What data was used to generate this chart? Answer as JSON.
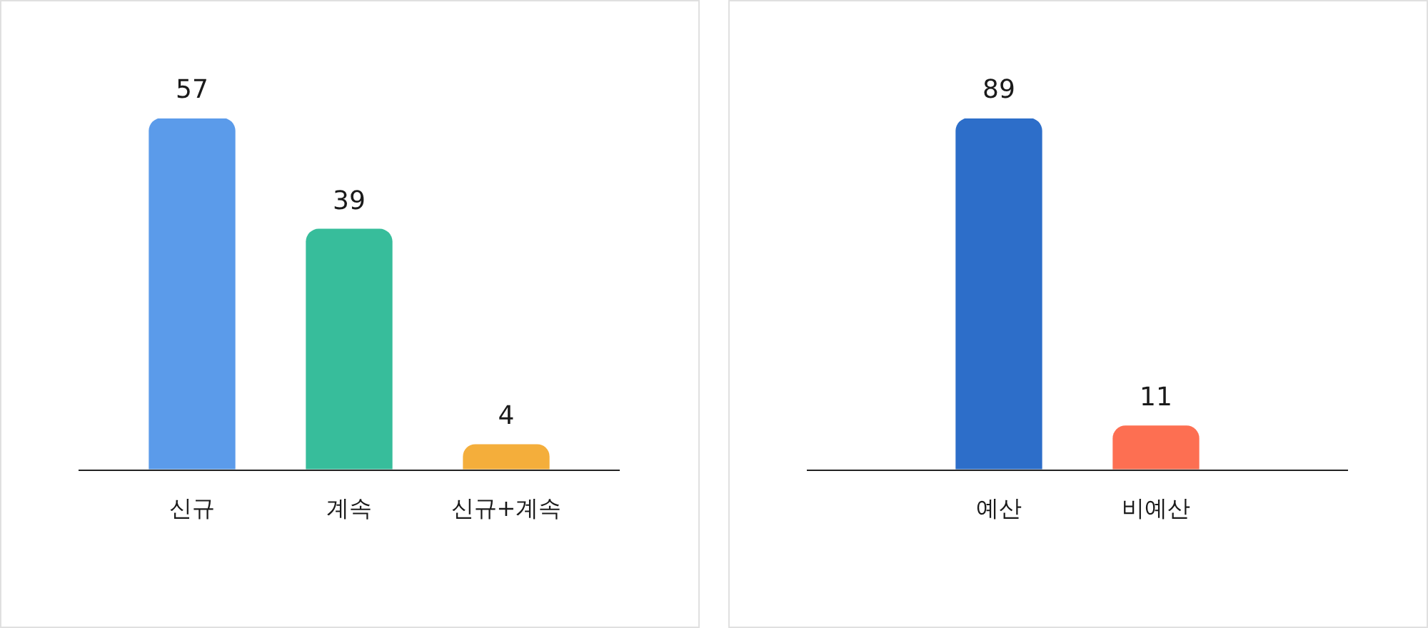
{
  "chart_data": [
    {
      "type": "bar",
      "categories": [
        "신규",
        "계속",
        "신규+계속"
      ],
      "values": [
        57,
        39,
        4
      ],
      "colors": [
        "#5b9bea",
        "#37bd9b",
        "#f4ae3b"
      ],
      "data_labels": true,
      "tick_labels": "x",
      "grid": false,
      "legend": false
    },
    {
      "type": "bar",
      "categories": [
        "예산",
        "비예산"
      ],
      "values": [
        89,
        11
      ],
      "colors": [
        "#2d6ec9",
        "#fd6f52"
      ],
      "data_labels": true,
      "tick_labels": "x",
      "grid": false,
      "legend": false
    }
  ]
}
